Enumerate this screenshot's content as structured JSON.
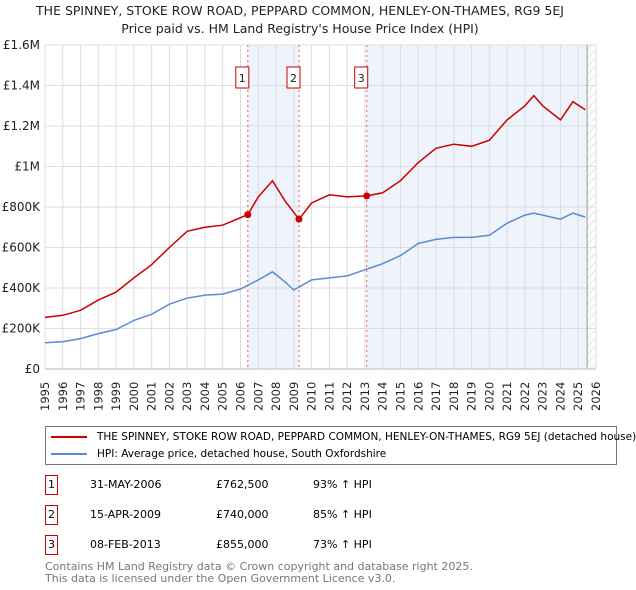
{
  "header": {
    "title": "THE SPINNEY, STOKE ROW ROAD, PEPPARD COMMON, HENLEY-ON-THAMES, RG9 5EJ",
    "subtitle": "Price paid vs. HM Land Registry's House Price Index (HPI)"
  },
  "chart_data": {
    "type": "line",
    "title": "THE SPINNEY, STOKE ROW ROAD, PEPPARD COMMON, HENLEY-ON-THAMES, RG9 5EJ",
    "subtitle": "Price paid vs. HM Land Registry's House Price Index (HPI)",
    "xlim": [
      1995,
      2026
    ],
    "ylim": [
      0,
      1600000
    ],
    "x_ticks": [
      "1995",
      "1996",
      "1997",
      "1998",
      "1999",
      "2000",
      "2001",
      "2002",
      "2003",
      "2004",
      "2005",
      "2006",
      "2007",
      "2008",
      "2009",
      "2010",
      "2011",
      "2012",
      "2013",
      "2014",
      "2015",
      "2016",
      "2017",
      "2018",
      "2019",
      "2020",
      "2021",
      "2022",
      "2023",
      "2024",
      "2025",
      "2026"
    ],
    "y_ticks": [
      {
        "v": 0,
        "label": "£0"
      },
      {
        "v": 200000,
        "label": "£200K"
      },
      {
        "v": 400000,
        "label": "£400K"
      },
      {
        "v": 600000,
        "label": "£600K"
      },
      {
        "v": 800000,
        "label": "£800K"
      },
      {
        "v": 1000000,
        "label": "£1M"
      },
      {
        "v": 1200000,
        "label": "£1.2M"
      },
      {
        "v": 1400000,
        "label": "£1.4M"
      },
      {
        "v": 1600000,
        "label": "£1.6M"
      }
    ],
    "grid": true,
    "series": [
      {
        "name": "THE SPINNEY, STOKE ROW ROAD, PEPPARD COMMON, HENLEY-ON-THAMES, RG9 5EJ (detached house)",
        "color": "#cc0000",
        "x": [
          1995,
          1996,
          1997,
          1998,
          1999,
          2000,
          2001,
          2002,
          2003,
          2004,
          2005,
          2006.41,
          2007,
          2007.8,
          2008.5,
          2009.29,
          2010,
          2011,
          2012,
          2013.1,
          2014,
          2015,
          2016,
          2017,
          2018,
          2019,
          2020,
          2021,
          2022,
          2022.5,
          2023,
          2024,
          2024.7,
          2025.4
        ],
        "y": [
          255000,
          265000,
          290000,
          340000,
          380000,
          450000,
          515000,
          600000,
          680000,
          700000,
          710000,
          762500,
          850000,
          930000,
          830000,
          740000,
          820000,
          860000,
          850000,
          855000,
          870000,
          930000,
          1020000,
          1090000,
          1110000,
          1100000,
          1130000,
          1230000,
          1300000,
          1350000,
          1300000,
          1230000,
          1320000,
          1280000
        ]
      },
      {
        "name": "HPI: Average price, detached house, South Oxfordshire",
        "color": "#5b8bd0",
        "x": [
          1995,
          1996,
          1997,
          1998,
          1999,
          2000,
          2001,
          2002,
          2003,
          2004,
          2005,
          2006,
          2007,
          2007.8,
          2008.5,
          2009,
          2010,
          2011,
          2012,
          2013,
          2014,
          2015,
          2016,
          2017,
          2018,
          2019,
          2020,
          2021,
          2022,
          2022.5,
          2023,
          2024,
          2024.7,
          2025.4
        ],
        "y": [
          130000,
          135000,
          150000,
          175000,
          195000,
          240000,
          270000,
          320000,
          350000,
          365000,
          370000,
          395000,
          440000,
          480000,
          430000,
          390000,
          440000,
          450000,
          460000,
          490000,
          520000,
          560000,
          620000,
          640000,
          650000,
          650000,
          660000,
          720000,
          760000,
          770000,
          760000,
          740000,
          770000,
          750000
        ]
      }
    ],
    "sales": [
      {
        "id": "1",
        "date": "31-MAY-2006",
        "x": 2006.41,
        "price": 762500,
        "price_label": "£762,500",
        "hpi": "93% ↑ HPI"
      },
      {
        "id": "2",
        "date": "15-APR-2009",
        "x": 2009.29,
        "price": 740000,
        "price_label": "£740,000",
        "hpi": "85% ↑ HPI"
      },
      {
        "id": "3",
        "date": "08-FEB-2013",
        "x": 2013.1,
        "price": 855000,
        "price_label": "£855,000",
        "hpi": "73% ↑ HPI"
      }
    ],
    "forecast_start": 2025.5
  },
  "legend": {
    "red": "THE SPINNEY, STOKE ROW ROAD, PEPPARD COMMON, HENLEY-ON-THAMES, RG9 5EJ (detached house)",
    "blue": "HPI: Average price, detached house, South Oxfordshire"
  },
  "footer": {
    "line1": "Contains HM Land Registry data © Crown copyright and database right 2025.",
    "line2": "This data is licensed under the Open Government Licence v3.0."
  },
  "colors": {
    "red": "#cc0000",
    "blue": "#5b8bd0",
    "shade": "#eef3fc"
  }
}
